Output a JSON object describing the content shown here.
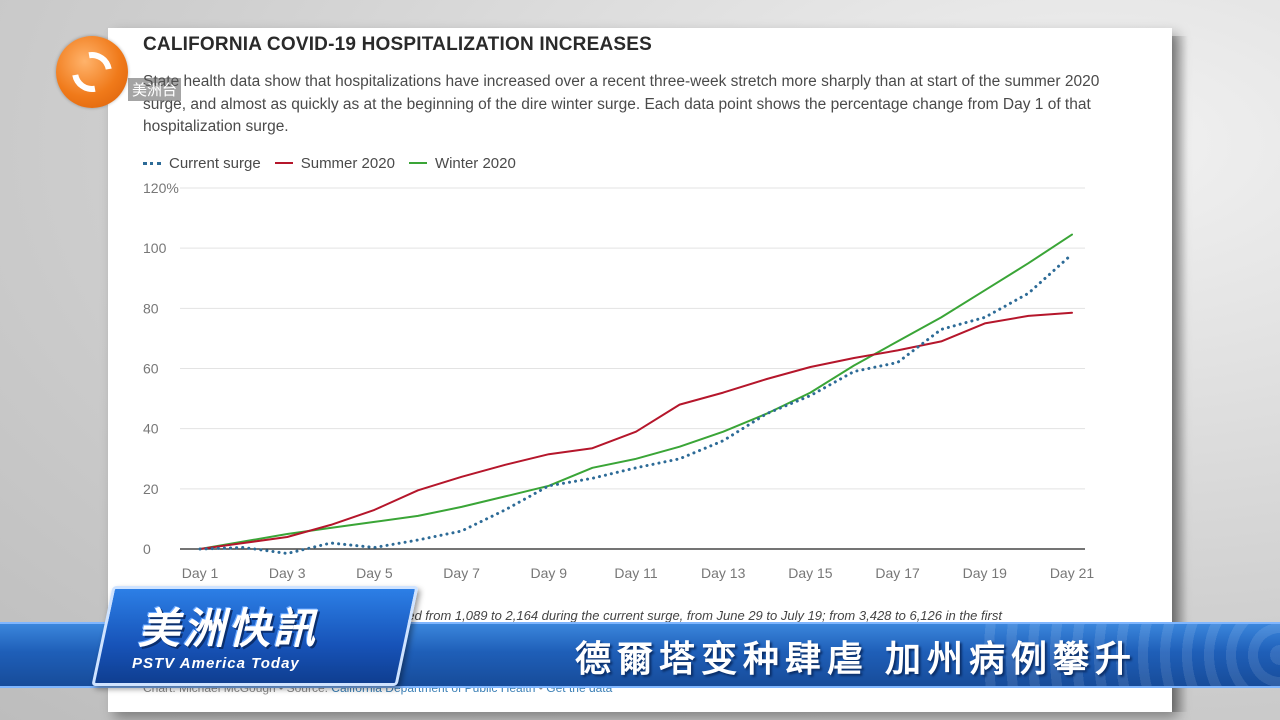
{
  "broadcast": {
    "channel_logo_text": "美洲台",
    "program_name": "美洲快訊",
    "program_subtitle": "PSTV America Today",
    "headline": "德爾塔变种肆虐  加州病例攀升"
  },
  "article": {
    "footnote_fragment": "ged from 1,089 to 2,164 during the current surge, from June 29 to July 19; from 3,428 to 6,126 in the first",
    "credit_prefix": "Chart: Michael McGough • Source: ",
    "credit_source": "California Department of Public Health",
    "credit_separator": " • ",
    "credit_link": "Get the data"
  },
  "colors": {
    "current": "#2d6b97",
    "summer": "#b5162b",
    "winter": "#3aa537",
    "grid": "#e3e3e3",
    "axis": "#222222"
  },
  "chart_data": {
    "type": "line",
    "title": "CALIFORNIA COVID-19 HOSPITALIZATION INCREASES",
    "subtitle": "State health data show that hospitalizations have increased over a recent three-week stretch more sharply than at start of the summer 2020 surge, and almost as quickly as at the beginning of the dire winter surge. Each data point shows the percentage change from Day 1 of that hospitalization surge.",
    "xlabel": "",
    "ylabel": "",
    "x": [
      1,
      2,
      3,
      4,
      5,
      6,
      7,
      8,
      9,
      10,
      11,
      12,
      13,
      14,
      15,
      16,
      17,
      18,
      19,
      20,
      21
    ],
    "x_tick_labels": [
      "Day 1",
      "Day 3",
      "Day 5",
      "Day 7",
      "Day 9",
      "Day 11",
      "Day 13",
      "Day 15",
      "Day 17",
      "Day 19",
      "Day 21"
    ],
    "x_tick_values": [
      1,
      3,
      5,
      7,
      9,
      11,
      13,
      15,
      17,
      19,
      21
    ],
    "y_ticks": [
      0,
      20,
      40,
      60,
      80,
      100,
      120
    ],
    "y_tick_labels": [
      "0",
      "20",
      "40",
      "60",
      "80",
      "100",
      "120%"
    ],
    "ylim": [
      0,
      120
    ],
    "legend_position": "top-left",
    "grid": true,
    "series": [
      {
        "name": "Current surge",
        "style": "dotted",
        "values": [
          0,
          0.5,
          -1.5,
          2,
          0.5,
          3,
          6,
          13,
          21,
          23.5,
          27,
          30,
          36,
          45,
          51,
          59,
          62,
          73,
          77,
          85,
          98
        ]
      },
      {
        "name": "Summer 2020",
        "style": "solid",
        "values": [
          0,
          2,
          4,
          8,
          13,
          19.5,
          24,
          28,
          31.5,
          33.5,
          39,
          48,
          52,
          56.5,
          60.5,
          63.5,
          66,
          69,
          75,
          77.5,
          78.5
        ]
      },
      {
        "name": "Winter 2020",
        "style": "solid",
        "values": [
          0,
          2.5,
          5,
          7,
          9,
          11,
          14,
          17.5,
          21,
          27,
          30,
          34,
          39,
          45,
          52,
          61,
          69,
          77,
          86,
          95,
          104.5
        ]
      }
    ]
  }
}
